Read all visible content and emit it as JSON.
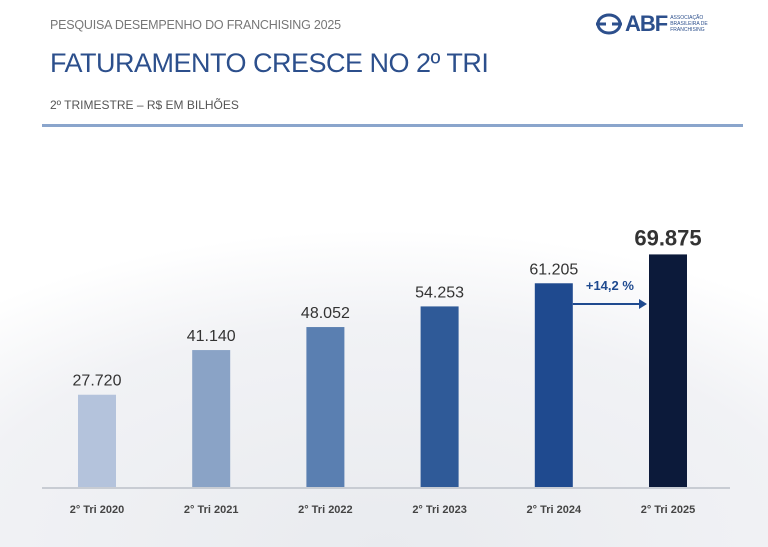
{
  "header": {
    "kicker": "PESQUISA DESEMPENHO DO FRANCHISING 2025",
    "title": "FATURAMENTO CRESCE NO 2º TRI",
    "subtitle": "2º TRIMESTRE – R$ EM BILHÕES"
  },
  "logo": {
    "name": "ABF",
    "tagline": "ASSOCIAÇÃO BRASILEIRA DE FRANCHISING"
  },
  "chart_data": {
    "type": "bar",
    "categories": [
      "2° Tri 2020",
      "2° Tri 2021",
      "2° Tri 2022",
      "2° Tri 2023",
      "2° Tri 2024",
      "2° Tri 2025"
    ],
    "values": [
      27.72,
      41.14,
      48.052,
      54.253,
      61.205,
      69.875
    ],
    "value_labels": [
      "27.720",
      "41.140",
      "48.052",
      "54.253",
      "61.205",
      "69.875"
    ],
    "colors": [
      "#b4c3dc",
      "#8aa3c6",
      "#5a7fb1",
      "#2f5a98",
      "#1f4a8f",
      "#0c1a3a"
    ],
    "annotation": {
      "text": "+14,2 %",
      "from": "2° Tri 2024",
      "to": "2° Tri 2025",
      "color": "#1f4a8f"
    },
    "ylim": [
      0,
      70
    ],
    "grid": false
  }
}
